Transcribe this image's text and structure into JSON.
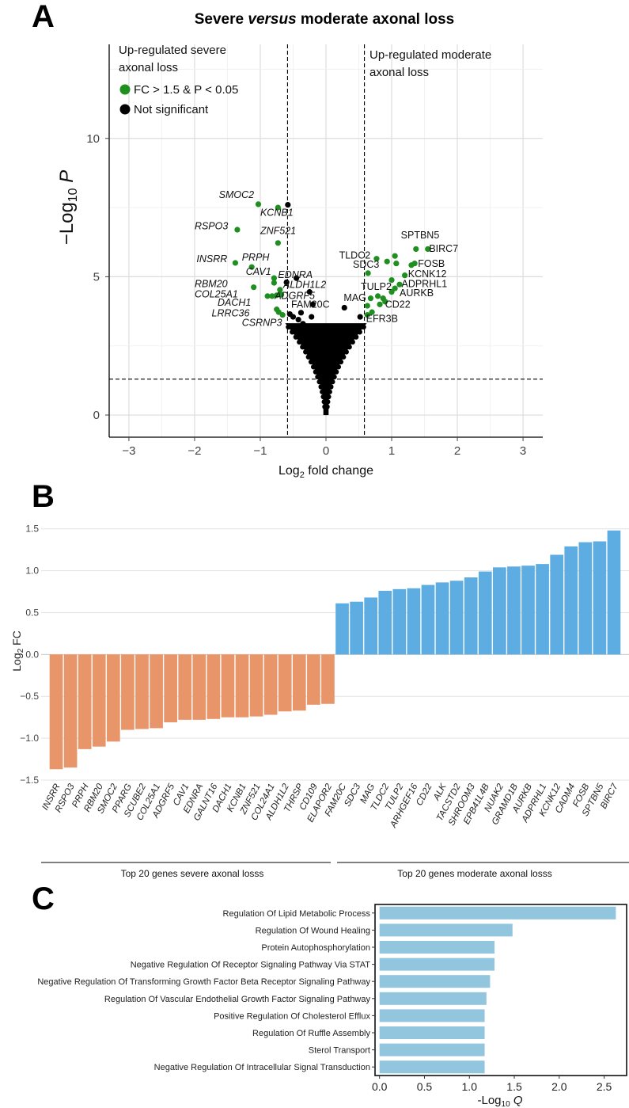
{
  "panelA": {
    "letter": "A",
    "title_pre": "Severe ",
    "title_ital": "versus",
    "title_post": " moderate axonal loss",
    "annot_left_line1": "Up-regulated severe",
    "annot_left_line2": "axonal loss",
    "annot_right_line1": "Up-regulated moderate",
    "annot_right_line2": "axonal loss",
    "legend": [
      {
        "label": "FC > 1.5 & P < 0.05",
        "color": "#1f8f1f"
      },
      {
        "label": "Not significant",
        "color": "#000000"
      }
    ],
    "xlabel_pre": "Log",
    "xlabel_sub": "2",
    "xlabel_post": " fold change",
    "ylabel_pre": "−Log",
    "ylabel_sub": "10",
    "ylabel_post": " P"
  },
  "panelB": {
    "letter": "B",
    "ylabel_pre": "Log",
    "ylabel_sub": "2",
    "ylabel_post": " FC",
    "group_left": "Top 20 genes severe axonal losss",
    "group_right": "Top 20 genes moderate axonal losss",
    "neg_color": "#e8956a",
    "pos_color": "#5dade2"
  },
  "panelC": {
    "letter": "C",
    "xlabel_pre": "-Log",
    "xlabel_sub": "10",
    "xlabel_post": " Q",
    "bar_color": "#92c5de"
  },
  "chart_data": [
    {
      "type": "scatter",
      "title": "Severe versus moderate axonal loss",
      "xlabel": "Log2 fold change",
      "ylabel": "-Log10 P",
      "xlim": [
        -3.3,
        3.3
      ],
      "ylim": [
        -0.8,
        13.4
      ],
      "xticks": [
        -3,
        -2,
        -1,
        0,
        1,
        2,
        3
      ],
      "yticks": [
        0,
        5,
        10
      ],
      "grid": true,
      "legend_position": "top-left",
      "thresholds": {
        "fc_lines": [
          -0.585,
          0.585
        ],
        "p_line": 1.3
      },
      "series": [
        {
          "name": "FC > 1.5 & P < 0.05",
          "color": "#1f8f1f",
          "points": [
            {
              "x": -1.03,
              "y": 7.62,
              "label": "SMOC2",
              "lx": -1.63,
              "ly": 7.85,
              "italic": true
            },
            {
              "x": -0.73,
              "y": 7.5,
              "label": "KCNB1",
              "lx": -1.0,
              "ly": 7.2,
              "italic": true
            },
            {
              "x": -1.35,
              "y": 6.7,
              "label": "RSPO3",
              "lx": -2.0,
              "ly": 6.72,
              "italic": true
            },
            {
              "x": -0.73,
              "y": 6.22,
              "label": "ZNF521",
              "lx": -1.0,
              "ly": 6.55,
              "italic": true
            },
            {
              "x": -1.38,
              "y": 5.5,
              "label": "INSRR",
              "lx": -1.97,
              "ly": 5.52,
              "italic": true
            },
            {
              "x": -1.13,
              "y": 5.35,
              "label": "PRPH",
              "lx": -1.28,
              "ly": 5.58,
              "italic": true
            },
            {
              "x": -0.79,
              "y": 4.95,
              "label": "CAV1",
              "lx": -1.22,
              "ly": 5.07,
              "italic": true
            },
            {
              "x": -0.79,
              "y": 4.78,
              "label": "EDNRA",
              "lx": -0.73,
              "ly": 4.95,
              "italic": true
            },
            {
              "x": -1.1,
              "y": 4.62,
              "label": "RBM20",
              "lx": -2.0,
              "ly": 4.62,
              "italic": true
            },
            {
              "x": -0.7,
              "y": 4.53,
              "label": "ALDH1L2",
              "lx": -0.65,
              "ly": 4.6,
              "italic": true
            },
            {
              "x": -0.89,
              "y": 4.3,
              "label": "COL25A1",
              "lx": -2.0,
              "ly": 4.25,
              "italic": true
            },
            {
              "x": -0.82,
              "y": 4.3,
              "label": "ADGRF5",
              "lx": -0.78,
              "ly": 4.2,
              "italic": true
            },
            {
              "x": -0.75,
              "y": 4.33,
              "label": "",
              "lx": 0,
              "ly": 0,
              "italic": true
            },
            {
              "x": -0.68,
              "y": 4.35,
              "label": "",
              "lx": 0,
              "ly": 0,
              "italic": true
            },
            {
              "x": -0.75,
              "y": 3.82,
              "label": "DACH1",
              "lx": -1.65,
              "ly": 3.95,
              "italic": true
            },
            {
              "x": -0.72,
              "y": 3.72,
              "label": "LRRC36",
              "lx": -1.74,
              "ly": 3.57,
              "italic": true
            },
            {
              "x": -0.66,
              "y": 3.62,
              "label": "CSRNP3",
              "lx": -1.28,
              "ly": 3.22,
              "italic": true
            },
            {
              "x": 0.77,
              "y": 5.65,
              "label": "TLDC2",
              "lx": 0.2,
              "ly": 5.65,
              "italic": false
            },
            {
              "x": 0.93,
              "y": 5.55,
              "label": "",
              "lx": 0,
              "ly": 0,
              "italic": false
            },
            {
              "x": 1.05,
              "y": 5.75,
              "label": "",
              "lx": 0,
              "ly": 0,
              "italic": false
            },
            {
              "x": 1.07,
              "y": 5.48,
              "label": "",
              "lx": 0,
              "ly": 0,
              "italic": false
            },
            {
              "x": 0.64,
              "y": 5.13,
              "label": "SDC3",
              "lx": 0.41,
              "ly": 5.32,
              "italic": false
            },
            {
              "x": 1.37,
              "y": 6.0,
              "label": "SPTBN5",
              "lx": 1.14,
              "ly": 6.38,
              "italic": false
            },
            {
              "x": 1.55,
              "y": 6.0,
              "label": "BIRC7",
              "lx": 1.57,
              "ly": 5.9,
              "italic": false
            },
            {
              "x": 1.3,
              "y": 5.42,
              "label": "FOSB",
              "lx": 1.4,
              "ly": 5.35,
              "italic": false
            },
            {
              "x": 1.35,
              "y": 5.48,
              "label": "",
              "lx": 0,
              "ly": 0,
              "italic": false
            },
            {
              "x": 1.2,
              "y": 5.05,
              "label": "KCNK12",
              "lx": 1.25,
              "ly": 4.98,
              "italic": false
            },
            {
              "x": 1.0,
              "y": 4.88,
              "label": "",
              "lx": 0,
              "ly": 0,
              "italic": false
            },
            {
              "x": 1.12,
              "y": 4.72,
              "label": "ADPRHL1",
              "lx": 1.15,
              "ly": 4.62,
              "italic": false
            },
            {
              "x": 1.05,
              "y": 4.58,
              "label": "TULP2",
              "lx": 0.53,
              "ly": 4.52,
              "italic": false
            },
            {
              "x": 1.0,
              "y": 4.45,
              "label": "AURKB",
              "lx": 1.12,
              "ly": 4.3,
              "italic": false
            },
            {
              "x": 0.87,
              "y": 4.22,
              "label": "",
              "lx": 0,
              "ly": 0,
              "italic": false
            },
            {
              "x": 0.79,
              "y": 4.3,
              "label": "",
              "lx": 0,
              "ly": 0,
              "italic": false
            },
            {
              "x": 0.68,
              "y": 4.22,
              "label": "MAG",
              "lx": 0.27,
              "ly": 4.13,
              "italic": false
            },
            {
              "x": 0.82,
              "y": 4.0,
              "label": "CD22",
              "lx": 0.9,
              "ly": 3.88,
              "italic": false
            },
            {
              "x": 0.9,
              "y": 4.1,
              "label": "",
              "lx": 0,
              "ly": 0,
              "italic": false
            },
            {
              "x": 0.63,
              "y": 3.95,
              "label": "FAM20C",
              "lx": -0.53,
              "ly": 3.88,
              "italic": false
            },
            {
              "x": 0.7,
              "y": 3.72,
              "label": "",
              "lx": 0,
              "ly": 0,
              "italic": false
            },
            {
              "x": 0.63,
              "y": 3.62,
              "label": "EFR3B",
              "lx": 0.61,
              "ly": 3.36,
              "italic": false
            }
          ]
        },
        {
          "name": "Not significant",
          "color": "#000000",
          "points": [
            {
              "x": -0.58,
              "y": 7.6
            },
            {
              "x": -0.6,
              "y": 4.8
            },
            {
              "x": -0.45,
              "y": 4.95
            },
            {
              "x": -0.25,
              "y": 4.45
            },
            {
              "x": 0.28,
              "y": 3.88
            },
            {
              "x": -0.55,
              "y": 3.65
            },
            {
              "x": -0.5,
              "y": 3.55
            },
            {
              "x": -0.42,
              "y": 3.45
            },
            {
              "x": -0.35,
              "y": 3.3
            },
            {
              "x": -0.2,
              "y": 4.0
            },
            {
              "x": -0.3,
              "y": 3.05
            },
            {
              "x": -0.52,
              "y": 3.2
            },
            {
              "x": -0.38,
              "y": 3.7
            },
            {
              "x": -0.22,
              "y": 3.55
            },
            {
              "x": 0.45,
              "y": 3.2
            },
            {
              "x": 0.52,
              "y": 3.55
            },
            {
              "x": -0.48,
              "y": 3.05
            },
            {
              "x": -0.28,
              "y": 2.9
            }
          ]
        }
      ]
    },
    {
      "type": "bar",
      "ylabel": "Log2 FC",
      "ylim": [
        -1.5,
        1.62
      ],
      "yticks": [
        -1.5,
        -1.0,
        -0.5,
        0.0,
        0.5,
        1.0,
        1.5
      ],
      "grid": true,
      "categories": [
        "INSRR",
        "RSPO3",
        "PRPH",
        "RBM20",
        "SMOC2",
        "PPARG",
        "SCUBE2",
        "COL25A1",
        "ADGRF5",
        "CAV1",
        "EDNRA",
        "GALNT16",
        "DACH1",
        "KCNB1",
        "ZNF521",
        "COL24A1",
        "ALDH1L2",
        "THRSP",
        "CD109",
        "ELAPOR2",
        "FAM20C",
        "SDC3",
        "MAG",
        "TLDC2",
        "TULP2",
        "ARHGEF16",
        "CD22",
        "ALK",
        "TACSTD2",
        "SHROOM3",
        "EPB41L4B",
        "NUAK2",
        "GRAMD1B",
        "AURKB",
        "ADPRHL1",
        "KCNK12",
        "CADM4",
        "FOSB",
        "SPTBN5",
        "BIRC7"
      ],
      "values": [
        -1.37,
        -1.35,
        -1.13,
        -1.1,
        -1.04,
        -0.9,
        -0.89,
        -0.88,
        -0.81,
        -0.78,
        -0.78,
        -0.77,
        -0.75,
        -0.75,
        -0.74,
        -0.72,
        -0.68,
        -0.67,
        -0.6,
        -0.59,
        0.61,
        0.63,
        0.68,
        0.76,
        0.78,
        0.79,
        0.83,
        0.86,
        0.88,
        0.92,
        0.99,
        1.04,
        1.05,
        1.06,
        1.08,
        1.19,
        1.29,
        1.34,
        1.35,
        1.48
      ],
      "groups": [
        {
          "label": "Top 20 genes severe axonal losss",
          "from": 0,
          "to": 19
        },
        {
          "label": "Top 20 genes moderate axonal losss",
          "from": 20,
          "to": 39
        }
      ]
    },
    {
      "type": "bar",
      "orientation": "horizontal",
      "xlabel": "-Log10 Q",
      "xlim": [
        -0.05,
        2.75
      ],
      "xticks": [
        0.0,
        0.5,
        1.0,
        1.5,
        2.0,
        2.5
      ],
      "categories": [
        "Regulation Of Lipid Metabolic Process",
        "Regulation Of Wound Healing",
        "Protein Autophosphorylation",
        "Negative Regulation Of Receptor Signaling Pathway Via STAT",
        "Negative Regulation Of Transforming Growth Factor Beta Receptor Signaling Pathway",
        "Regulation Of Vascular Endothelial Growth Factor Signaling Pathway",
        "Positive Regulation Of Cholesterol Efflux",
        "Regulation Of Ruffle Assembly",
        "Sterol Transport",
        "Negative Regulation Of Intracellular Signal Transduction"
      ],
      "values": [
        2.63,
        1.48,
        1.28,
        1.28,
        1.23,
        1.19,
        1.17,
        1.17,
        1.17,
        1.17
      ]
    }
  ]
}
